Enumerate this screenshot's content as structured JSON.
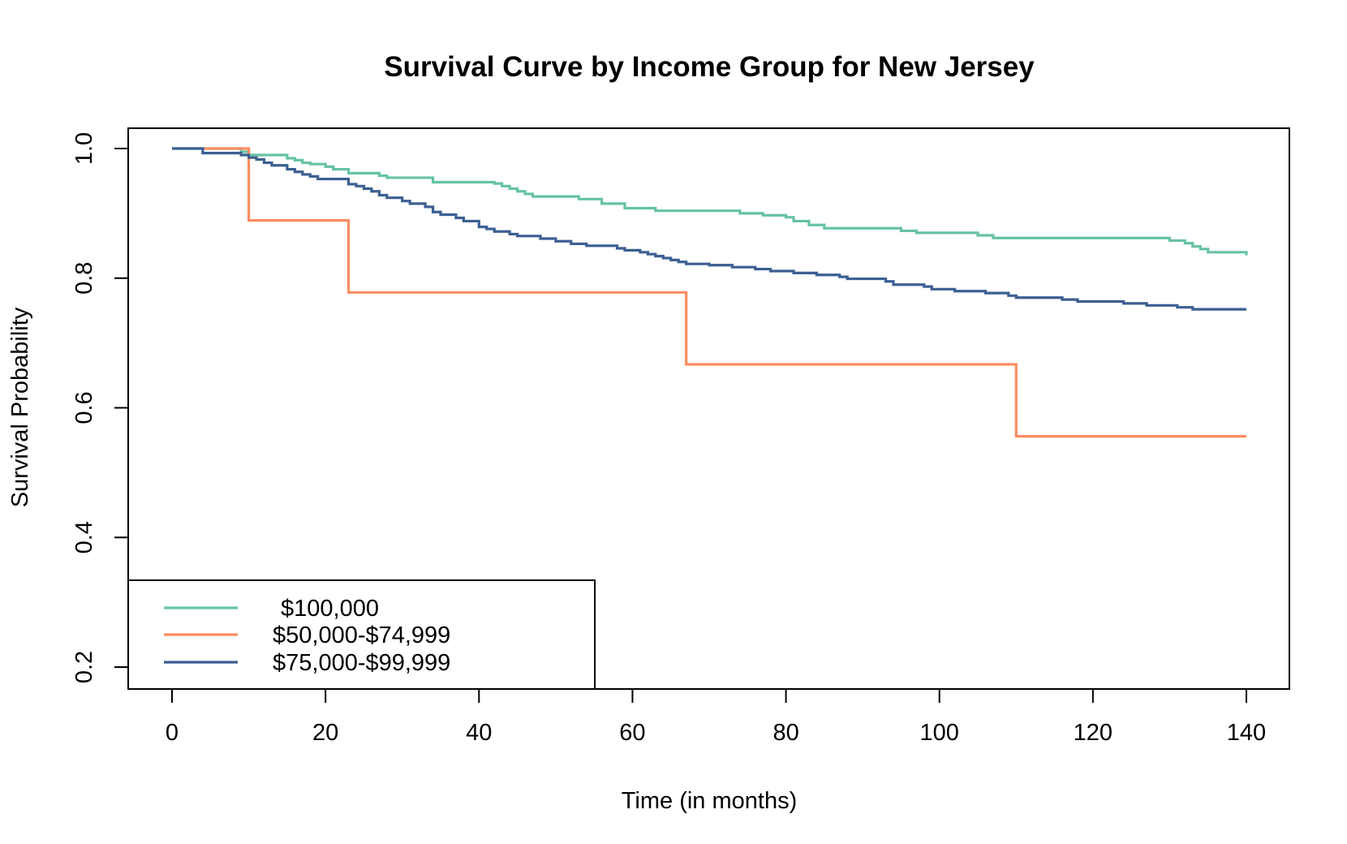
{
  "chart_data": {
    "type": "line",
    "step": true,
    "title": "Survival Curve by Income Group for New Jersey",
    "xlabel": "Time (in months)",
    "ylabel": "Survival Probability",
    "xlim": [
      0,
      140
    ],
    "ylim": [
      0.2,
      1.0
    ],
    "x_ticks": [
      0,
      20,
      40,
      60,
      80,
      100,
      120,
      140
    ],
    "y_ticks": [
      0.2,
      0.4,
      0.6,
      0.8,
      1.0
    ],
    "x_tick_labels": [
      "0",
      "20",
      "40",
      "60",
      "80",
      "100",
      "120",
      "140"
    ],
    "y_tick_labels": [
      "0.2",
      "0.4",
      "0.6",
      "0.8",
      "1.0"
    ],
    "grid": false,
    "legend_position": "bottom-left",
    "series": [
      {
        "name": " $100,000",
        "color": "#66c2a5",
        "points": [
          [
            0,
            1.0
          ],
          [
            9,
            0.995
          ],
          [
            10,
            0.99
          ],
          [
            15,
            0.985
          ],
          [
            16,
            0.982
          ],
          [
            17,
            0.978
          ],
          [
            18,
            0.976
          ],
          [
            20,
            0.972
          ],
          [
            21,
            0.968
          ],
          [
            23,
            0.962
          ],
          [
            27,
            0.958
          ],
          [
            28,
            0.955
          ],
          [
            34,
            0.948
          ],
          [
            42,
            0.946
          ],
          [
            43,
            0.942
          ],
          [
            44,
            0.938
          ],
          [
            45,
            0.934
          ],
          [
            46,
            0.93
          ],
          [
            47,
            0.926
          ],
          [
            53,
            0.922
          ],
          [
            56,
            0.915
          ],
          [
            59,
            0.908
          ],
          [
            63,
            0.904
          ],
          [
            74,
            0.9
          ],
          [
            77,
            0.897
          ],
          [
            80,
            0.894
          ],
          [
            81,
            0.888
          ],
          [
            83,
            0.882
          ],
          [
            85,
            0.877
          ],
          [
            95,
            0.873
          ],
          [
            97,
            0.87
          ],
          [
            105,
            0.866
          ],
          [
            107,
            0.862
          ],
          [
            130,
            0.858
          ],
          [
            132,
            0.854
          ],
          [
            133,
            0.849
          ],
          [
            134,
            0.845
          ],
          [
            135,
            0.84
          ],
          [
            140,
            0.835
          ]
        ],
        "end_x": 140
      },
      {
        "name": "$50,000-$74,999",
        "color": "#fc8d62",
        "points": [
          [
            4,
            1.0
          ],
          [
            10,
            0.889
          ],
          [
            23,
            0.778
          ],
          [
            67,
            0.667
          ],
          [
            110,
            0.556
          ]
        ],
        "end_x": 140
      },
      {
        "name": "$75,000-$99,999",
        "color": "#3b5f92",
        "points": [
          [
            0,
            1.0
          ],
          [
            4,
            0.993
          ],
          [
            9,
            0.99
          ],
          [
            10,
            0.986
          ],
          [
            11,
            0.983
          ],
          [
            12,
            0.978
          ],
          [
            13,
            0.974
          ],
          [
            15,
            0.968
          ],
          [
            16,
            0.964
          ],
          [
            17,
            0.96
          ],
          [
            18,
            0.957
          ],
          [
            19,
            0.953
          ],
          [
            23,
            0.945
          ],
          [
            24,
            0.942
          ],
          [
            25,
            0.938
          ],
          [
            26,
            0.934
          ],
          [
            27,
            0.928
          ],
          [
            28,
            0.924
          ],
          [
            30,
            0.919
          ],
          [
            31,
            0.915
          ],
          [
            33,
            0.91
          ],
          [
            34,
            0.902
          ],
          [
            35,
            0.898
          ],
          [
            37,
            0.893
          ],
          [
            38,
            0.888
          ],
          [
            40,
            0.879
          ],
          [
            41,
            0.876
          ],
          [
            42,
            0.872
          ],
          [
            44,
            0.868
          ],
          [
            45,
            0.865
          ],
          [
            48,
            0.861
          ],
          [
            50,
            0.857
          ],
          [
            52,
            0.853
          ],
          [
            54,
            0.85
          ],
          [
            58,
            0.846
          ],
          [
            59,
            0.843
          ],
          [
            61,
            0.84
          ],
          [
            62,
            0.837
          ],
          [
            63,
            0.834
          ],
          [
            64,
            0.831
          ],
          [
            65,
            0.828
          ],
          [
            66,
            0.825
          ],
          [
            67,
            0.822
          ],
          [
            70,
            0.82
          ],
          [
            73,
            0.817
          ],
          [
            76,
            0.814
          ],
          [
            78,
            0.811
          ],
          [
            81,
            0.808
          ],
          [
            84,
            0.805
          ],
          [
            87,
            0.802
          ],
          [
            88,
            0.799
          ],
          [
            93,
            0.795
          ],
          [
            94,
            0.79
          ],
          [
            98,
            0.787
          ],
          [
            99,
            0.783
          ],
          [
            102,
            0.78
          ],
          [
            106,
            0.777
          ],
          [
            109,
            0.773
          ],
          [
            110,
            0.77
          ],
          [
            116,
            0.767
          ],
          [
            118,
            0.764
          ],
          [
            124,
            0.761
          ],
          [
            127,
            0.758
          ],
          [
            131,
            0.755
          ],
          [
            133,
            0.752
          ],
          [
            140,
            0.752
          ]
        ],
        "end_x": 140
      }
    ],
    "legend": {
      "entries": [
        " $100,000",
        "$50,000-$74,999",
        "$75,000-$99,999"
      ]
    }
  }
}
